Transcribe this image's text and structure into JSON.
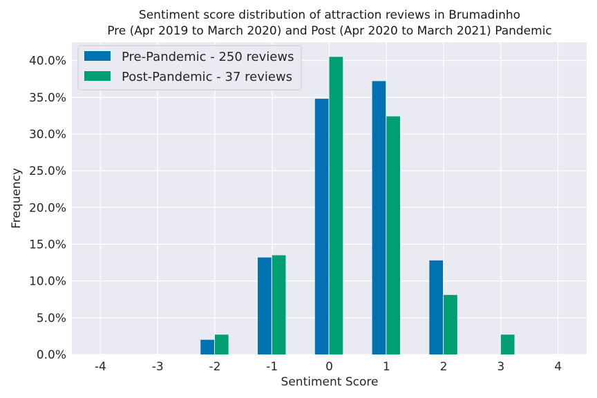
{
  "chart_data": {
    "type": "bar",
    "title_lines": [
      "Sentiment score distribution of attraction reviews in Brumadinho",
      "Pre (Apr 2019 to March 2020) and Post (Apr 2020 to March 2021) Pandemic"
    ],
    "xlabel": "Sentiment Score",
    "ylabel": "Frequency",
    "x": [
      -4,
      -3,
      -2,
      -1,
      0,
      1,
      2,
      3,
      4
    ],
    "x_tick_labels": [
      "-4",
      "-3",
      "-2",
      "-1",
      "0",
      "1",
      "2",
      "3",
      "4"
    ],
    "y_ticks": [
      0,
      5,
      10,
      15,
      20,
      25,
      30,
      35,
      40
    ],
    "y_tick_labels": [
      "0.0%",
      "5.0%",
      "10.0%",
      "15.0%",
      "20.0%",
      "25.0%",
      "30.0%",
      "35.0%",
      "40.0%"
    ],
    "xlim": [
      -4.5,
      4.5
    ],
    "ylim": [
      0,
      42.5
    ],
    "grid": true,
    "legend_position": "top-left",
    "series": [
      {
        "name": "Pre-Pandemic - 250 reviews",
        "color": "#0072b2",
        "values": [
          0,
          0,
          2.0,
          13.2,
          34.8,
          37.2,
          12.8,
          0,
          0
        ]
      },
      {
        "name": "Post-Pandemic - 37 reviews",
        "color": "#009e73",
        "values": [
          0,
          0,
          2.7,
          13.5,
          40.5,
          32.4,
          8.1,
          2.7,
          0
        ]
      }
    ]
  }
}
